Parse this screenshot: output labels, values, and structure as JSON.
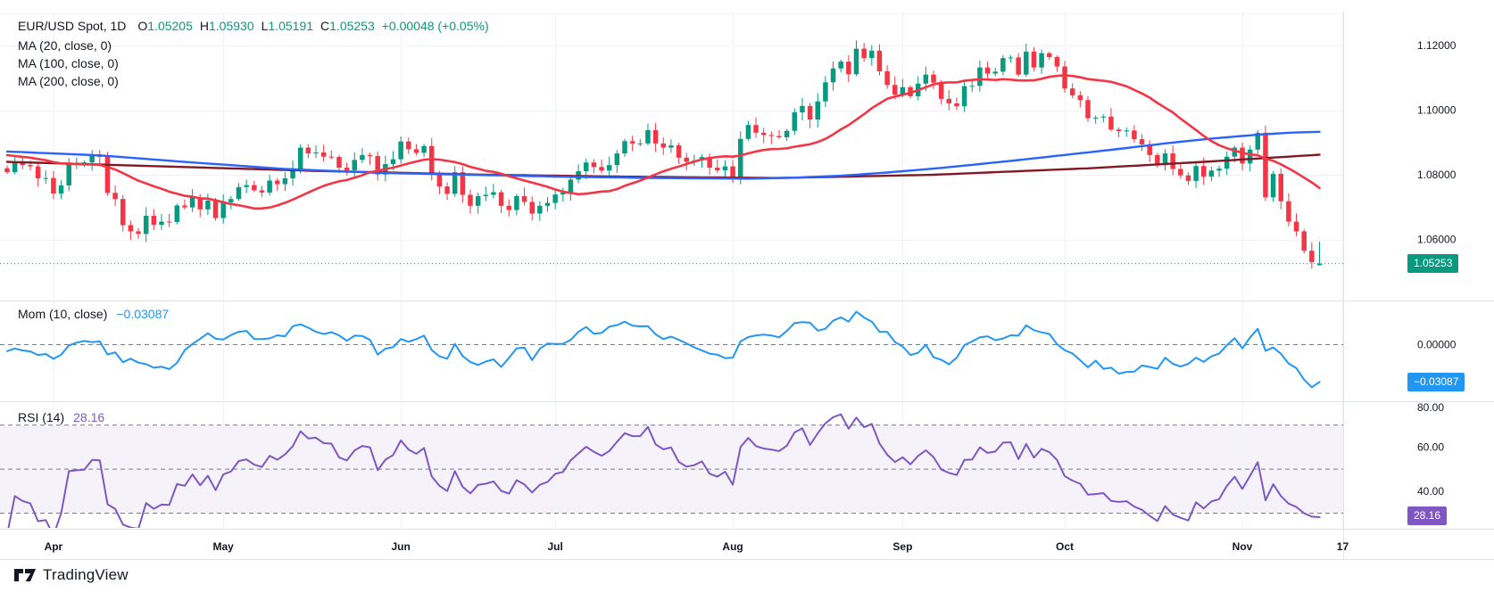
{
  "header": {
    "symbol": "EUR/USD Spot, 1D",
    "ohlc": [
      {
        "k": "O",
        "v": "1.05205"
      },
      {
        "k": "H",
        "v": "1.05930"
      },
      {
        "k": "L",
        "v": "1.05191"
      },
      {
        "k": "C",
        "v": "1.05253"
      }
    ],
    "change": "+0.00048 (+0.05%)"
  },
  "legend": {
    "ma": [
      "MA (20, close, 0)",
      "MA (100, close, 0)",
      "MA (200, close, 0)"
    ]
  },
  "panes": {
    "momentum": {
      "label": "Mom (10, close)",
      "value": "−0.03087"
    },
    "rsi": {
      "label": "RSI (14)",
      "value": "28.16"
    }
  },
  "axes": {
    "price": {
      "labels": [
        "1.12000",
        "1.10000",
        "1.08000",
        "1.06000"
      ],
      "values": [
        1.12,
        1.1,
        1.08,
        1.06
      ],
      "badge": "1.05253"
    },
    "momentum": {
      "labels": [
        "0.00000"
      ],
      "values": [
        0
      ],
      "badge": "−0.03087"
    },
    "rsi": {
      "labels": [
        "80.00",
        "60.00",
        "40.00"
      ],
      "values": [
        80,
        60,
        40
      ],
      "badge": "28.16"
    },
    "time": {
      "labels": [
        "Apr",
        "May",
        "Jun",
        "Jul",
        "Aug",
        "Sep",
        "Oct",
        "Nov",
        "17"
      ],
      "indices": [
        6,
        28,
        51,
        71,
        94,
        116,
        137,
        160,
        173
      ]
    }
  },
  "footer": {
    "brand": "TradingView"
  },
  "colors": {
    "up": "#089981",
    "down": "#f23645",
    "ma20": "#f23645",
    "ma100": "#2962ff",
    "ma200": "#801922",
    "momentum": "#2196f3",
    "rsi": "#7e57c2",
    "rsi_band_fill": "rgba(126,87,194,0.08)",
    "grid": "#f0f3fa",
    "separator": "#e0e3eb",
    "dashed_level": "#787b86",
    "axis_text": "#131722",
    "current_price_line": "#089981"
  },
  "chart_data": {
    "type": "candlestick",
    "symbol": "EUR/USD Spot",
    "interval": "1D",
    "title": "EUR/USD Spot, 1D with MA(20), MA(100), MA(200), Mom(10), RSI(14)",
    "price_ylim": [
      1.041,
      1.131
    ],
    "price_gridlines": [
      1.13,
      1.12,
      1.1,
      1.08,
      1.06
    ],
    "last_bar": {
      "open": 1.05205,
      "high": 1.0593,
      "low": 1.05191,
      "close": 1.05253,
      "change": "+0.00048 (+0.05%)"
    },
    "momentum": {
      "period": 10,
      "last": -0.03087,
      "zero_level": 0
    },
    "rsi": {
      "period": 14,
      "last": 28.16,
      "upper_band": 70,
      "mid": 50,
      "lower_band": 30,
      "ylim": [
        20,
        80
      ]
    },
    "pre_closes": [
      1.089,
      1.0885,
      1.0878,
      1.087,
      1.0865,
      1.0858,
      1.0852,
      1.0848,
      1.0855,
      1.0862,
      1.087,
      1.0878,
      1.0882,
      1.0875,
      1.0868,
      1.086,
      1.085,
      1.0842,
      1.082
    ],
    "closes": [
      1.0808,
      1.0838,
      1.083,
      1.0826,
      1.0789,
      1.079,
      1.0742,
      1.0767,
      1.0835,
      1.0837,
      1.0838,
      1.0858,
      1.0857,
      1.0744,
      1.0725,
      1.0644,
      1.0625,
      1.0617,
      1.0673,
      1.0645,
      1.0655,
      1.0654,
      1.0705,
      1.0699,
      1.073,
      1.0693,
      1.072,
      1.0666,
      1.0715,
      1.0725,
      1.0762,
      1.0768,
      1.0752,
      1.0745,
      1.0782,
      1.0771,
      1.0789,
      1.0819,
      1.0884,
      1.0866,
      1.0869,
      1.0856,
      1.0855,
      1.0822,
      1.0814,
      1.0846,
      1.0861,
      1.0858,
      1.0801,
      1.0833,
      1.0848,
      1.0903,
      1.0879,
      1.0868,
      1.0889,
      1.0801,
      1.0764,
      1.0741,
      1.0808,
      1.0738,
      1.0704,
      1.0734,
      1.0738,
      1.0746,
      1.0704,
      1.0691,
      1.0734,
      1.0716,
      1.068,
      1.0704,
      1.0713,
      1.0739,
      1.0745,
      1.0785,
      1.0811,
      1.0838,
      1.0824,
      1.0813,
      1.083,
      1.0866,
      1.0904,
      1.0897,
      1.0897,
      1.0938,
      1.0897,
      1.0884,
      1.0891,
      1.0853,
      1.084,
      1.0844,
      1.0855,
      1.0822,
      1.0814,
      1.0826,
      1.0789,
      1.0911,
      1.0954,
      1.093,
      1.0923,
      1.092,
      1.0916,
      1.0936,
      1.0993,
      1.1013,
      1.0971,
      1.1027,
      1.1086,
      1.1129,
      1.115,
      1.1111,
      1.119,
      1.1161,
      1.1184,
      1.112,
      1.1078,
      1.1048,
      1.1071,
      1.1043,
      1.1082,
      1.111,
      1.1085,
      1.1035,
      1.1021,
      1.1012,
      1.1074,
      1.1075,
      1.1132,
      1.1113,
      1.1119,
      1.1161,
      1.1163,
      1.111,
      1.1181,
      1.1132,
      1.1176,
      1.1164,
      1.1135,
      1.1067,
      1.1046,
      1.1031,
      1.0975,
      1.0977,
      1.098,
      1.094,
      1.0935,
      1.0937,
      1.091,
      1.0894,
      1.0861,
      1.083,
      1.0866,
      1.0818,
      1.0798,
      1.0781,
      1.0827,
      1.0794,
      1.0813,
      1.0819,
      1.0856,
      1.0884,
      1.0835,
      1.0878,
      1.093,
      1.073,
      1.0803,
      1.0718,
      1.0655,
      1.0625,
      1.0565,
      1.053,
      1.05253
    ],
    "ma100_points": [
      [
        0,
        1.0872
      ],
      [
        12,
        1.086
      ],
      [
        24,
        1.0838
      ],
      [
        36,
        1.0818
      ],
      [
        48,
        1.0806
      ],
      [
        60,
        1.08
      ],
      [
        72,
        1.0794
      ],
      [
        84,
        1.079
      ],
      [
        96,
        1.0788
      ],
      [
        102,
        1.0791
      ],
      [
        108,
        1.0797
      ],
      [
        114,
        1.0807
      ],
      [
        120,
        1.0819
      ],
      [
        126,
        1.0833
      ],
      [
        132,
        1.0848
      ],
      [
        138,
        1.0864
      ],
      [
        144,
        1.088
      ],
      [
        150,
        1.0897
      ],
      [
        156,
        1.0912
      ],
      [
        162,
        1.0924
      ],
      [
        166,
        1.093
      ],
      [
        170,
        1.0933
      ]
    ],
    "ma200_points": [
      [
        0,
        1.084
      ],
      [
        20,
        1.0826
      ],
      [
        40,
        1.0812
      ],
      [
        60,
        1.0801
      ],
      [
        80,
        1.0794
      ],
      [
        100,
        1.079
      ],
      [
        120,
        1.08
      ],
      [
        140,
        1.082
      ],
      [
        155,
        1.084
      ],
      [
        170,
        1.0862
      ]
    ]
  }
}
